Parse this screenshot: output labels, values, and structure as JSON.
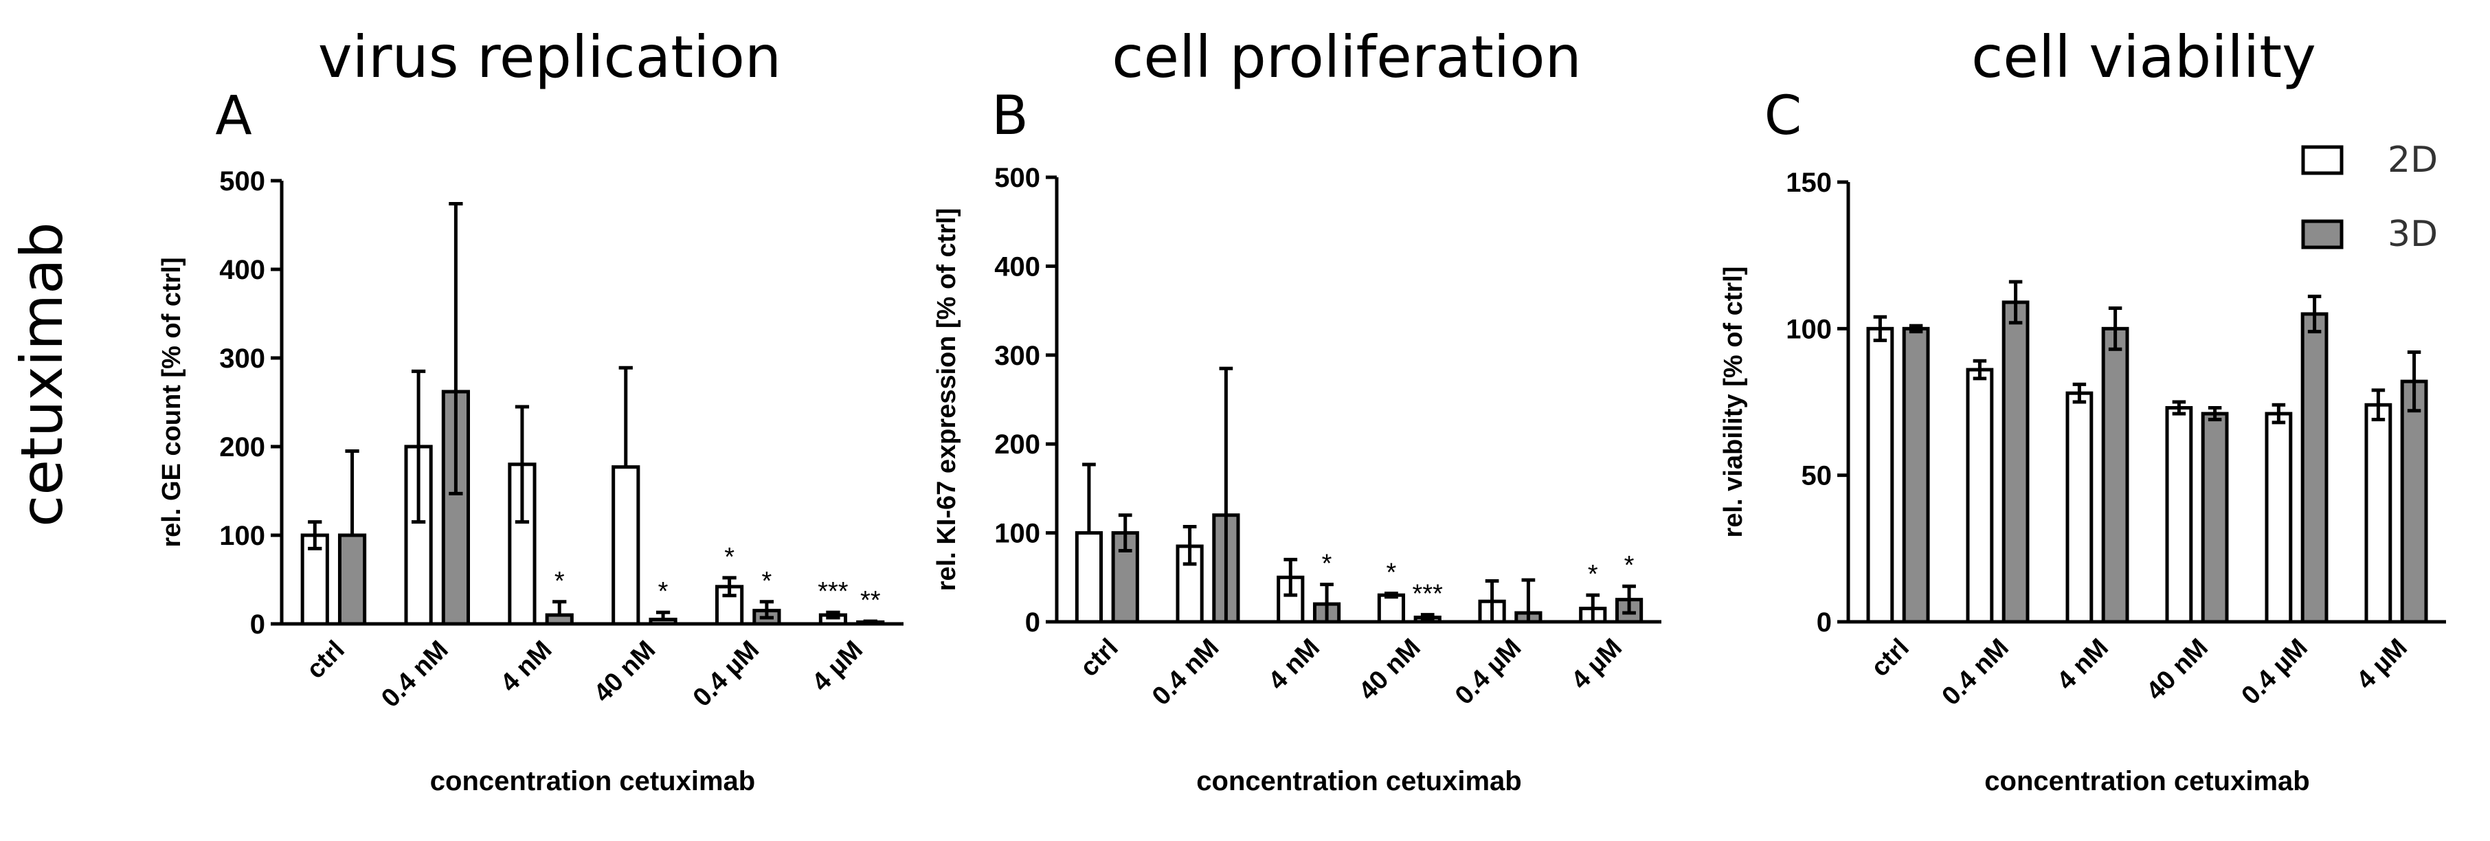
{
  "figure": {
    "side_label": "cetuximab",
    "legend": [
      {
        "name": "2D",
        "color": "#ffffff"
      },
      {
        "name": "3D",
        "color": "#8c8c8c"
      }
    ]
  },
  "chart_data": [
    {
      "type": "bar",
      "panel": "A",
      "title": "virus replication",
      "xlabel": "concentration cetuximab",
      "ylabel": "rel. GE count [% of ctrl]",
      "ylim": [
        0,
        500
      ],
      "yticks": [
        0,
        100,
        200,
        300,
        400,
        500
      ],
      "categories": [
        "ctrl",
        "0.4 nM",
        "4 nM",
        "40 nM",
        "0.4 µM",
        "4 µM"
      ],
      "series": [
        {
          "name": "2D",
          "values": [
            100,
            200,
            180,
            177,
            42,
            10
          ],
          "err_low": [
            15,
            85,
            65,
            0,
            10,
            3
          ],
          "err_high": [
            15,
            85,
            65,
            112,
            10,
            3
          ],
          "sig": [
            "",
            "",
            "",
            "",
            "*",
            "***"
          ]
        },
        {
          "name": "3D",
          "values": [
            100,
            262,
            10,
            5,
            15,
            2
          ],
          "err_low": [
            0,
            115,
            0,
            0,
            8,
            0
          ],
          "err_high": [
            95,
            212,
            15,
            8,
            10,
            1
          ],
          "sig": [
            "",
            "",
            "*",
            "*",
            "*",
            "**"
          ]
        }
      ]
    },
    {
      "type": "bar",
      "panel": "B",
      "title": "cell proliferation",
      "xlabel": "concentration cetuximab",
      "ylabel": "rel. KI-67 expression [% of ctrl]",
      "ylim": [
        0,
        500
      ],
      "yticks": [
        0,
        100,
        200,
        300,
        400,
        500
      ],
      "categories": [
        "ctrl",
        "0.4 nM",
        "4 nM",
        "40 nM",
        "0.4 µM",
        "4 µM"
      ],
      "series": [
        {
          "name": "2D",
          "values": [
            100,
            85,
            50,
            30,
            23,
            15
          ],
          "err_low": [
            0,
            20,
            20,
            2,
            23,
            15
          ],
          "err_high": [
            77,
            22,
            20,
            2,
            23,
            15
          ],
          "sig": [
            "",
            "",
            "",
            "*",
            "",
            "*"
          ]
        },
        {
          "name": "3D",
          "values": [
            100,
            120,
            20,
            5,
            10,
            25
          ],
          "err_low": [
            20,
            120,
            20,
            3,
            10,
            15
          ],
          "err_high": [
            20,
            165,
            22,
            3,
            37,
            15
          ],
          "sig": [
            "",
            "",
            "*",
            "***",
            "",
            "*"
          ]
        }
      ]
    },
    {
      "type": "bar",
      "panel": "C",
      "title": "cell viability",
      "xlabel": "concentration cetuximab",
      "ylabel": "rel. viability [% of ctrl]",
      "ylim": [
        0,
        150
      ],
      "yticks": [
        0,
        50,
        100,
        150
      ],
      "categories": [
        "ctrl",
        "0.4 nM",
        "4 nM",
        "40 nM",
        "0.4 µM",
        "4 µM"
      ],
      "series": [
        {
          "name": "2D",
          "values": [
            100,
            86,
            78,
            73,
            71,
            74
          ],
          "err_low": [
            4,
            3,
            3,
            2,
            3,
            5
          ],
          "err_high": [
            4,
            3,
            3,
            2,
            3,
            5
          ],
          "sig": [
            "",
            "",
            "",
            "",
            "",
            ""
          ]
        },
        {
          "name": "3D",
          "values": [
            100,
            109,
            100,
            71,
            105,
            82
          ],
          "err_low": [
            1,
            7,
            7,
            2,
            6,
            10
          ],
          "err_high": [
            1,
            7,
            7,
            2,
            6,
            10
          ],
          "sig": [
            "",
            "",
            "",
            "",
            "",
            ""
          ]
        }
      ]
    }
  ]
}
